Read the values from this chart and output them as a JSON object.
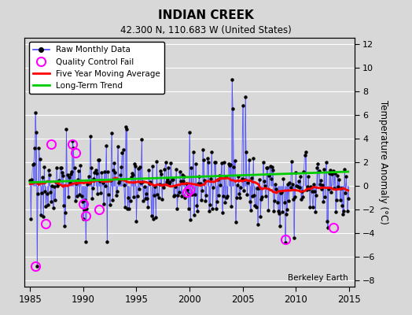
{
  "title": "INDIAN CREEK",
  "subtitle": "42.300 N, 110.683 W (United States)",
  "right_ylabel": "Temperature Anomaly (°C)",
  "watermark": "Berkeley Earth",
  "xlim": [
    1984.5,
    2015.5
  ],
  "ylim": [
    -8.5,
    12.5
  ],
  "yticks": [
    -8,
    -6,
    -4,
    -2,
    0,
    2,
    4,
    6,
    8,
    10,
    12
  ],
  "xticks": [
    1985,
    1990,
    1995,
    2000,
    2005,
    2010,
    2015
  ],
  "bg_color": "#d8d8d8",
  "plot_bg_color": "#d8d8d8",
  "grid_color": "white",
  "raw_line_color": "#4444ff",
  "raw_marker_color": "black",
  "qc_fail_color": "magenta",
  "moving_avg_color": "red",
  "trend_color": "#00cc00",
  "seed": 17,
  "n_months": 360,
  "start_year": 1985.0,
  "qc_fail_times": [
    1985.5,
    1986.5,
    1987.0,
    1989.0,
    1989.25,
    1990.0,
    1990.25,
    1991.5,
    1999.75,
    2000.0,
    2009.0,
    2013.5
  ],
  "qc_fail_values": [
    -6.8,
    -3.2,
    3.5,
    3.5,
    2.8,
    -1.5,
    -2.5,
    -2.0,
    -0.5,
    -0.3,
    -4.5,
    -3.5
  ]
}
